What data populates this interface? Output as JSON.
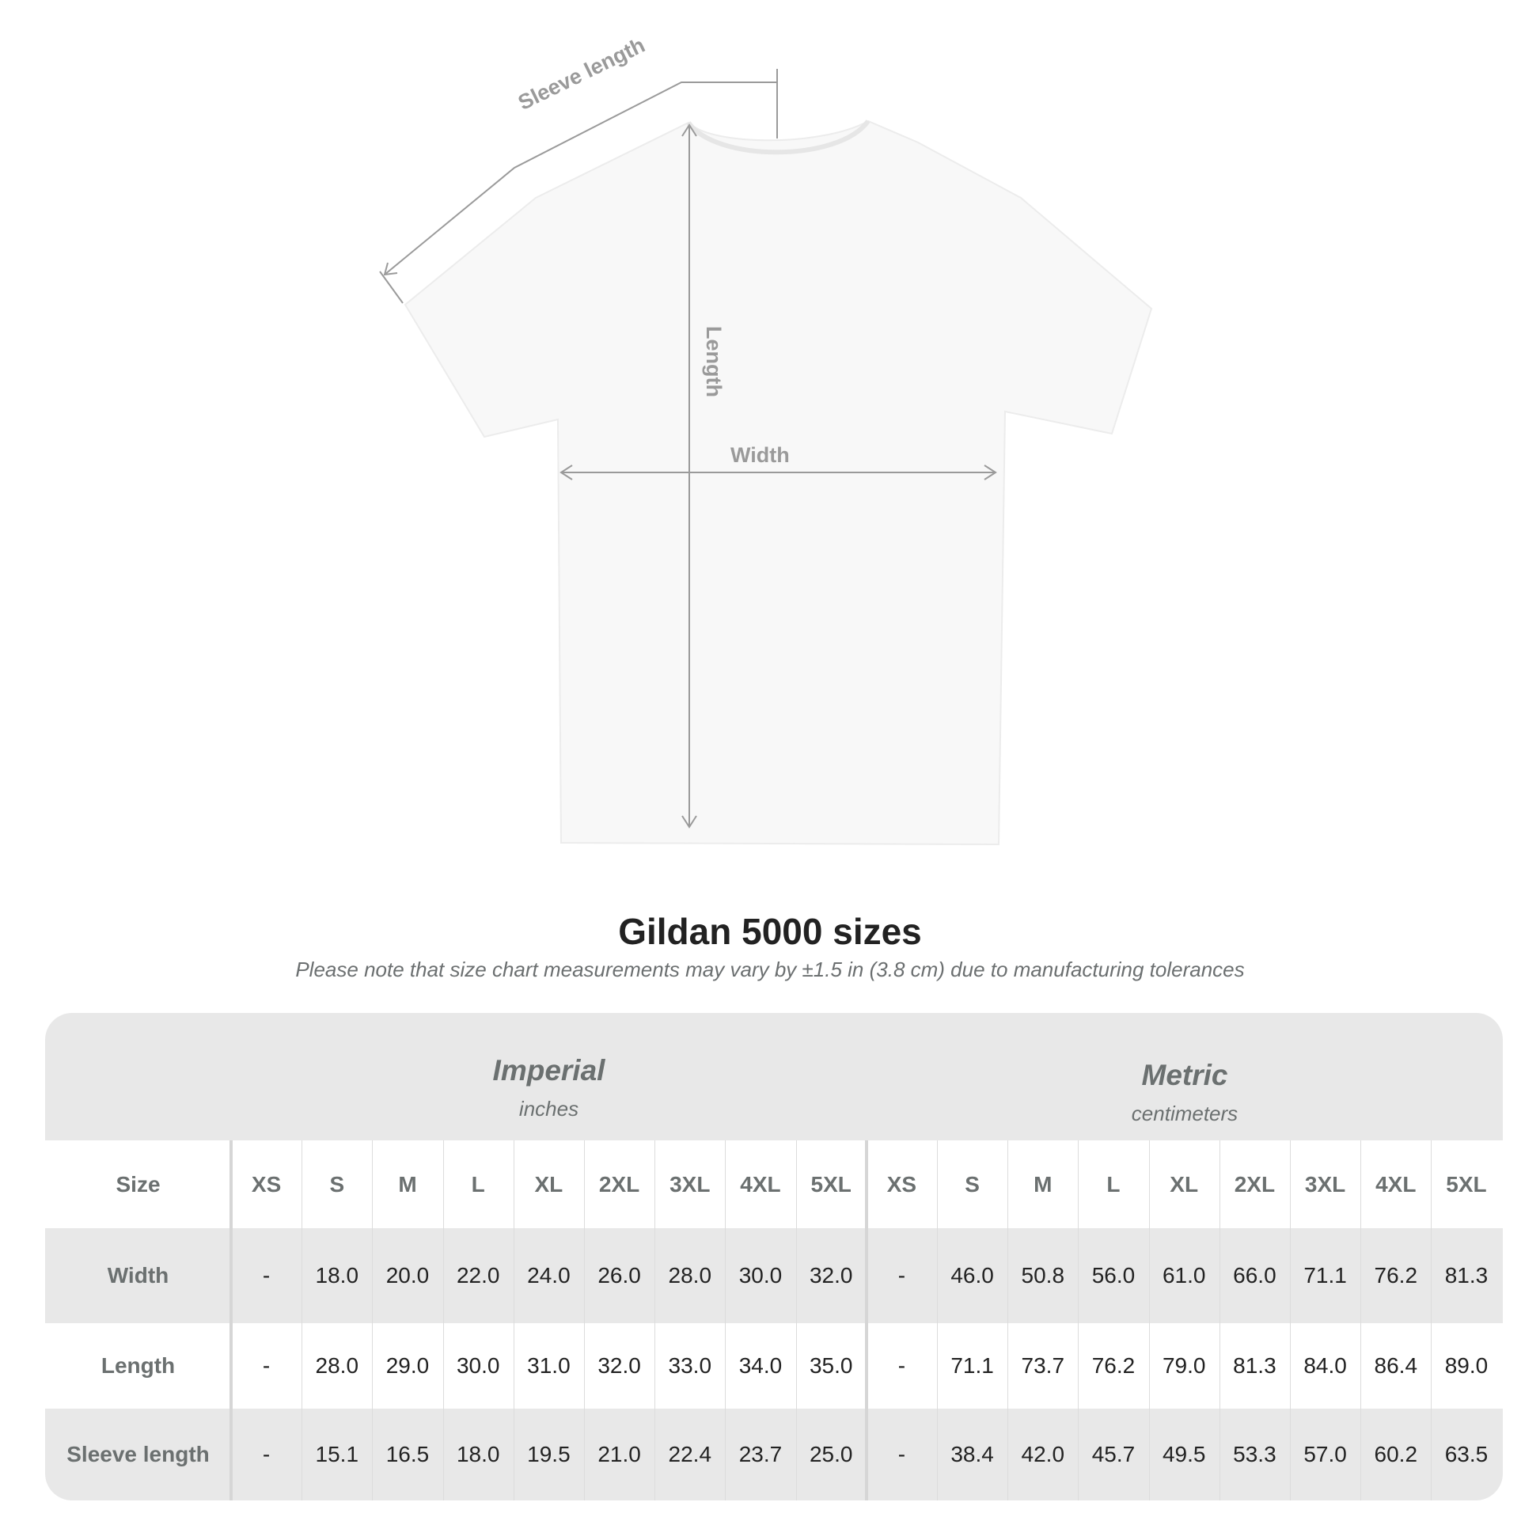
{
  "diagram": {
    "labels": {
      "sleeve": "Sleeve length",
      "length": "Length",
      "width": "Width"
    },
    "line_color": "#9a9a9a"
  },
  "title": "Gildan 5000 sizes",
  "note": "Please note that size chart measurements may vary by ±1.5 in (3.8 cm) due to manufacturing tolerances",
  "table": {
    "imperial": {
      "name": "Imperial",
      "unit": "inches"
    },
    "metric": {
      "name": "Metric",
      "unit": "centimeters"
    },
    "size_label": "Size",
    "sizes": [
      "XS",
      "S",
      "M",
      "L",
      "XL",
      "2XL",
      "3XL",
      "4XL",
      "5XL"
    ],
    "rows": [
      {
        "label": "Width",
        "imperial": [
          "-",
          "18.0",
          "20.0",
          "22.0",
          "24.0",
          "26.0",
          "28.0",
          "30.0",
          "32.0"
        ],
        "metric": [
          "-",
          "46.0",
          "50.8",
          "56.0",
          "61.0",
          "66.0",
          "71.1",
          "76.2",
          "81.3"
        ]
      },
      {
        "label": "Length",
        "imperial": [
          "-",
          "28.0",
          "29.0",
          "30.0",
          "31.0",
          "32.0",
          "33.0",
          "34.0",
          "35.0"
        ],
        "metric": [
          "-",
          "71.1",
          "73.7",
          "76.2",
          "79.0",
          "81.3",
          "84.0",
          "86.4",
          "89.0"
        ]
      },
      {
        "label": "Sleeve length",
        "imperial": [
          "-",
          "15.1",
          "16.5",
          "18.0",
          "19.5",
          "21.0",
          "22.4",
          "23.7",
          "25.0"
        ],
        "metric": [
          "-",
          "38.4",
          "42.0",
          "45.7",
          "49.5",
          "53.3",
          "57.0",
          "60.2",
          "63.5"
        ]
      }
    ],
    "colors": {
      "band": "#e8e8e8",
      "header_text": "#6b7070",
      "value_text": "#222222"
    }
  }
}
